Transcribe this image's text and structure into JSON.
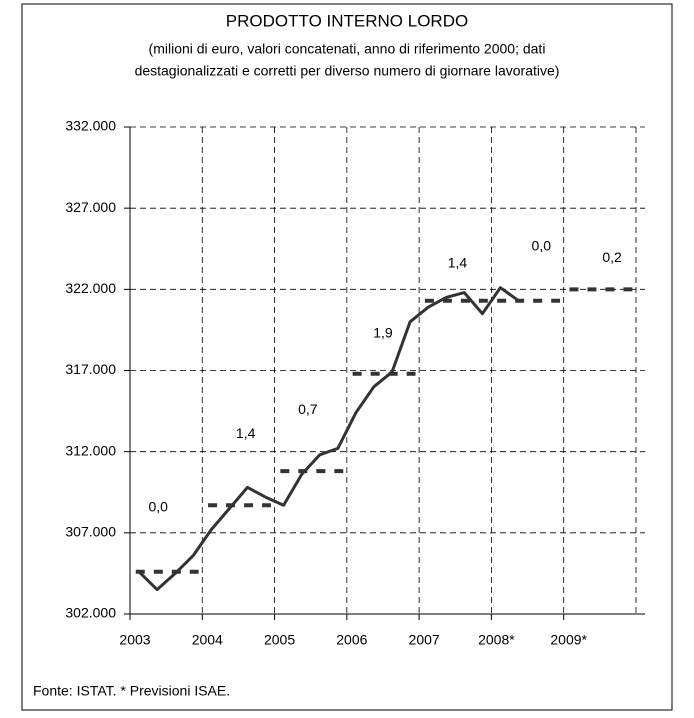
{
  "chart_data": {
    "type": "line",
    "title": "PRODOTTO INTERNO LORDO",
    "subtitle": [
      "(milioni di euro, valori concatenati, anno di riferimento 2000; dati",
      "destagionalizzati e corretti per diverso numero di giornare lavorative)"
    ],
    "source": "Fonte: ISTAT. * Previsioni ISAE.",
    "xlim": [
      2003,
      2010.125
    ],
    "xticks": [
      2003,
      2004,
      2005,
      2006,
      2007,
      {
        "value": 2008,
        "label": "2008*"
      },
      {
        "value": 2009,
        "label": "2009*"
      }
    ],
    "ylim": [
      302000,
      332000
    ],
    "yticks": [
      {
        "value": 302000,
        "label": "302.000"
      },
      {
        "value": 307000,
        "label": "307.000"
      },
      {
        "value": 312000,
        "label": "312.000"
      },
      {
        "value": 317000,
        "label": "317.000"
      },
      {
        "value": 322000,
        "label": "322.000"
      },
      {
        "value": 327000,
        "label": "327.000"
      },
      {
        "value": 332000,
        "label": "332.000"
      }
    ],
    "grid": true,
    "quarterly": {
      "color": "#333333",
      "values": [
        304600,
        303500,
        304500,
        305600,
        307200,
        308500,
        309800,
        309200,
        308700,
        310600,
        311800,
        312200,
        314400,
        316000,
        316900,
        320000,
        320900,
        321500,
        321800,
        320500,
        322100,
        321300
      ]
    },
    "annual": {
      "color": "#333333",
      "values": [
        304600,
        308700,
        310800,
        316800,
        321300,
        321300,
        322000
      ]
    },
    "growth": {
      "values": [
        0.0,
        1.4,
        0.7,
        1.9,
        1.4,
        0.0,
        0.2
      ],
      "value_labels": [
        "0,0",
        "1,4",
        "0,7",
        "1,9",
        "1,4",
        "0,0",
        "0,2"
      ]
    }
  }
}
